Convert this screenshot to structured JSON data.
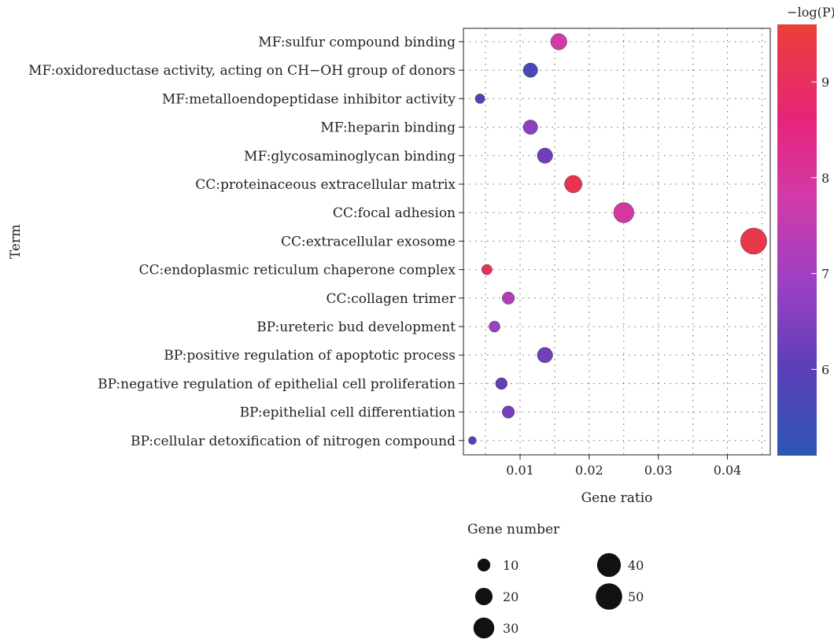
{
  "chart_data": {
    "type": "scatter",
    "xlabel": "Gene ratio",
    "ylabel": "Term",
    "xlim": [
      0.0018,
      0.0462
    ],
    "x_ticks": [
      0.01,
      0.02,
      0.03,
      0.04
    ],
    "x_tick_labels": [
      "0.01",
      "0.02",
      "0.03",
      "0.04"
    ],
    "grid": true,
    "categories": [
      "MF:sulfur compound binding",
      "MF:oxidoreductase activity, acting on CH−OH group of donors",
      "MF:metalloendopeptidase inhibitor activity",
      "MF:heparin binding",
      "MF:glycosaminoglycan binding",
      "CC:proteinaceous extracellular matrix",
      "CC:focal adhesion",
      "CC:extracellular exosome",
      "CC:endoplasmic reticulum chaperone complex",
      "CC:collagen trimer",
      "BP:ureteric bud development",
      "BP:positive regulation of apoptotic process",
      "BP:negative regulation of epithelial cell proliferation",
      "BP:epithelial cell differentiation",
      "BP:cellular detoxification of nitrogen compound"
    ],
    "points": [
      {
        "term": "MF:sulfur compound binding",
        "gene_ratio": 0.0156,
        "gene_number": 17,
        "neg_log_p": 7.8
      },
      {
        "term": "MF:oxidoreductase activity, acting on CH−OH group of donors",
        "gene_ratio": 0.0115,
        "gene_number": 13,
        "neg_log_p": 5.6
      },
      {
        "term": "MF:metalloendopeptidase inhibitor activity",
        "gene_ratio": 0.0042,
        "gene_number": 5,
        "neg_log_p": 5.8
      },
      {
        "term": "MF:heparin binding",
        "gene_ratio": 0.0115,
        "gene_number": 13,
        "neg_log_p": 6.6
      },
      {
        "term": "MF:glycosaminoglycan binding",
        "gene_ratio": 0.0136,
        "gene_number": 15,
        "neg_log_p": 6.3
      },
      {
        "term": "CC:proteinaceous extracellular matrix",
        "gene_ratio": 0.0177,
        "gene_number": 20,
        "neg_log_p": 9.2
      },
      {
        "term": "CC:focal adhesion",
        "gene_ratio": 0.025,
        "gene_number": 28,
        "neg_log_p": 7.9
      },
      {
        "term": "CC:extracellular exosome",
        "gene_ratio": 0.0438,
        "gene_number": 49,
        "neg_log_p": 9.3
      },
      {
        "term": "CC:endoplasmic reticulum chaperone complex",
        "gene_ratio": 0.0052,
        "gene_number": 6,
        "neg_log_p": 9.1
      },
      {
        "term": "CC:collagen trimer",
        "gene_ratio": 0.0083,
        "gene_number": 9,
        "neg_log_p": 7.2
      },
      {
        "term": "BP:ureteric bud development",
        "gene_ratio": 0.0063,
        "gene_number": 7,
        "neg_log_p": 6.9
      },
      {
        "term": "BP:positive regulation of apoptotic process",
        "gene_ratio": 0.0136,
        "gene_number": 15,
        "neg_log_p": 6.3
      },
      {
        "term": "BP:negative regulation of epithelial cell proliferation",
        "gene_ratio": 0.0073,
        "gene_number": 8,
        "neg_log_p": 6.1
      },
      {
        "term": "BP:epithelial cell differentiation",
        "gene_ratio": 0.0083,
        "gene_number": 9,
        "neg_log_p": 6.4
      },
      {
        "term": "BP:cellular detoxification of nitrogen compound",
        "gene_ratio": 0.0031,
        "gene_number": 3,
        "neg_log_p": 5.9
      }
    ],
    "color_legend": {
      "title": "−log(P)",
      "range": [
        5.1,
        9.6
      ],
      "ticks": [
        6,
        7,
        8,
        9
      ],
      "tick_labels": [
        "6",
        "7",
        "8",
        "9"
      ],
      "low_color": "#2d56b3",
      "mid_color": "#9c40c4",
      "high_color": "#ea4036"
    },
    "size_legend": {
      "title": "Gene number",
      "values": [
        10,
        20,
        30,
        40,
        50
      ],
      "labels": [
        "10",
        "20",
        "30",
        "40",
        "50"
      ]
    }
  }
}
